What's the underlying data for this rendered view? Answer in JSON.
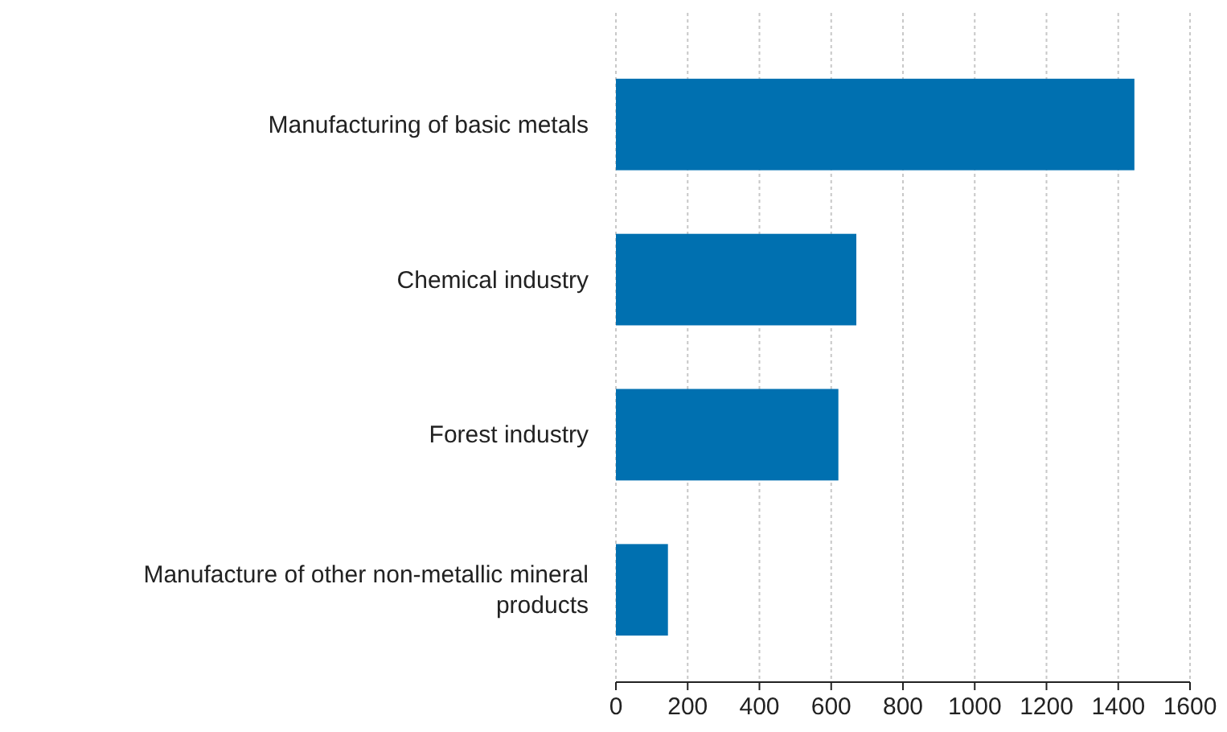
{
  "chart_data": {
    "type": "bar",
    "orientation": "horizontal",
    "categories": [
      "Manufacturing of basic metals",
      "Chemical industry",
      "Forest industry",
      "Manufacture of other non-metallic mineral products"
    ],
    "values": [
      1445,
      670,
      620,
      145
    ],
    "color": "#0070b0",
    "xlim": [
      0,
      1600
    ],
    "xticks": [
      0,
      200,
      400,
      600,
      800,
      1000,
      1200,
      1400,
      1600
    ],
    "grid": "x"
  }
}
